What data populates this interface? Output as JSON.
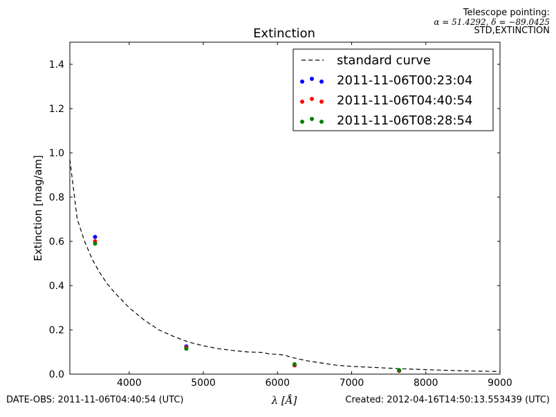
{
  "header": {
    "pointing_title": "Telescope pointing:",
    "pointing_coords": "α = 51.4292, δ = −89.0425",
    "pointing_mode": "STD,EXTINCTION"
  },
  "footer": {
    "date_obs": "DATE-OBS: 2011-11-06T04:40:54 (UTC)",
    "created": "Created: 2012-04-16T14:50:13.553439 (UTC)"
  },
  "chart_data": {
    "type": "scatter",
    "title": "Extinction",
    "xlabel": "λ [Å]",
    "ylabel": "Extinction [mag/am]",
    "xlim": [
      3200,
      9000
    ],
    "ylim": [
      0.0,
      1.5
    ],
    "xticks": [
      4000,
      5000,
      6000,
      7000,
      8000,
      9000
    ],
    "yticks": [
      0.0,
      0.2,
      0.4,
      0.6,
      0.8,
      1.0,
      1.2,
      1.4
    ],
    "legend_position": "top-right",
    "grid": false,
    "standard_curve": {
      "name": "standard curve",
      "color": "#000000",
      "x": [
        3200,
        3300,
        3400,
        3500,
        3600,
        3700,
        3800,
        4000,
        4200,
        4400,
        4600,
        4800,
        5000,
        5200,
        5400,
        5600,
        5800,
        5900,
        6000,
        6100,
        6200,
        6400,
        6600,
        6800,
        7000,
        7500,
        8000,
        8500,
        9000
      ],
      "y": [
        0.97,
        0.7,
        0.6,
        0.52,
        0.46,
        0.41,
        0.37,
        0.3,
        0.245,
        0.2,
        0.17,
        0.145,
        0.128,
        0.115,
        0.107,
        0.1,
        0.098,
        0.09,
        0.09,
        0.085,
        0.075,
        0.06,
        0.05,
        0.04,
        0.035,
        0.027,
        0.02,
        0.015,
        0.012
      ]
    },
    "series": [
      {
        "name": "2011-11-06T00:23:04",
        "color": "#0000ff",
        "x": [
          3540,
          4770,
          6230,
          7640
        ],
        "y": [
          0.62,
          0.125,
          0.04,
          0.015
        ]
      },
      {
        "name": "2011-11-06T04:40:54",
        "color": "#ff0000",
        "x": [
          3540,
          4770,
          6230,
          7640
        ],
        "y": [
          0.6,
          0.12,
          0.04,
          0.015
        ]
      },
      {
        "name": "2011-11-06T08:28:54",
        "color": "#008000",
        "x": [
          3540,
          4770,
          6230,
          7640
        ],
        "y": [
          0.59,
          0.115,
          0.045,
          0.018
        ]
      }
    ]
  }
}
